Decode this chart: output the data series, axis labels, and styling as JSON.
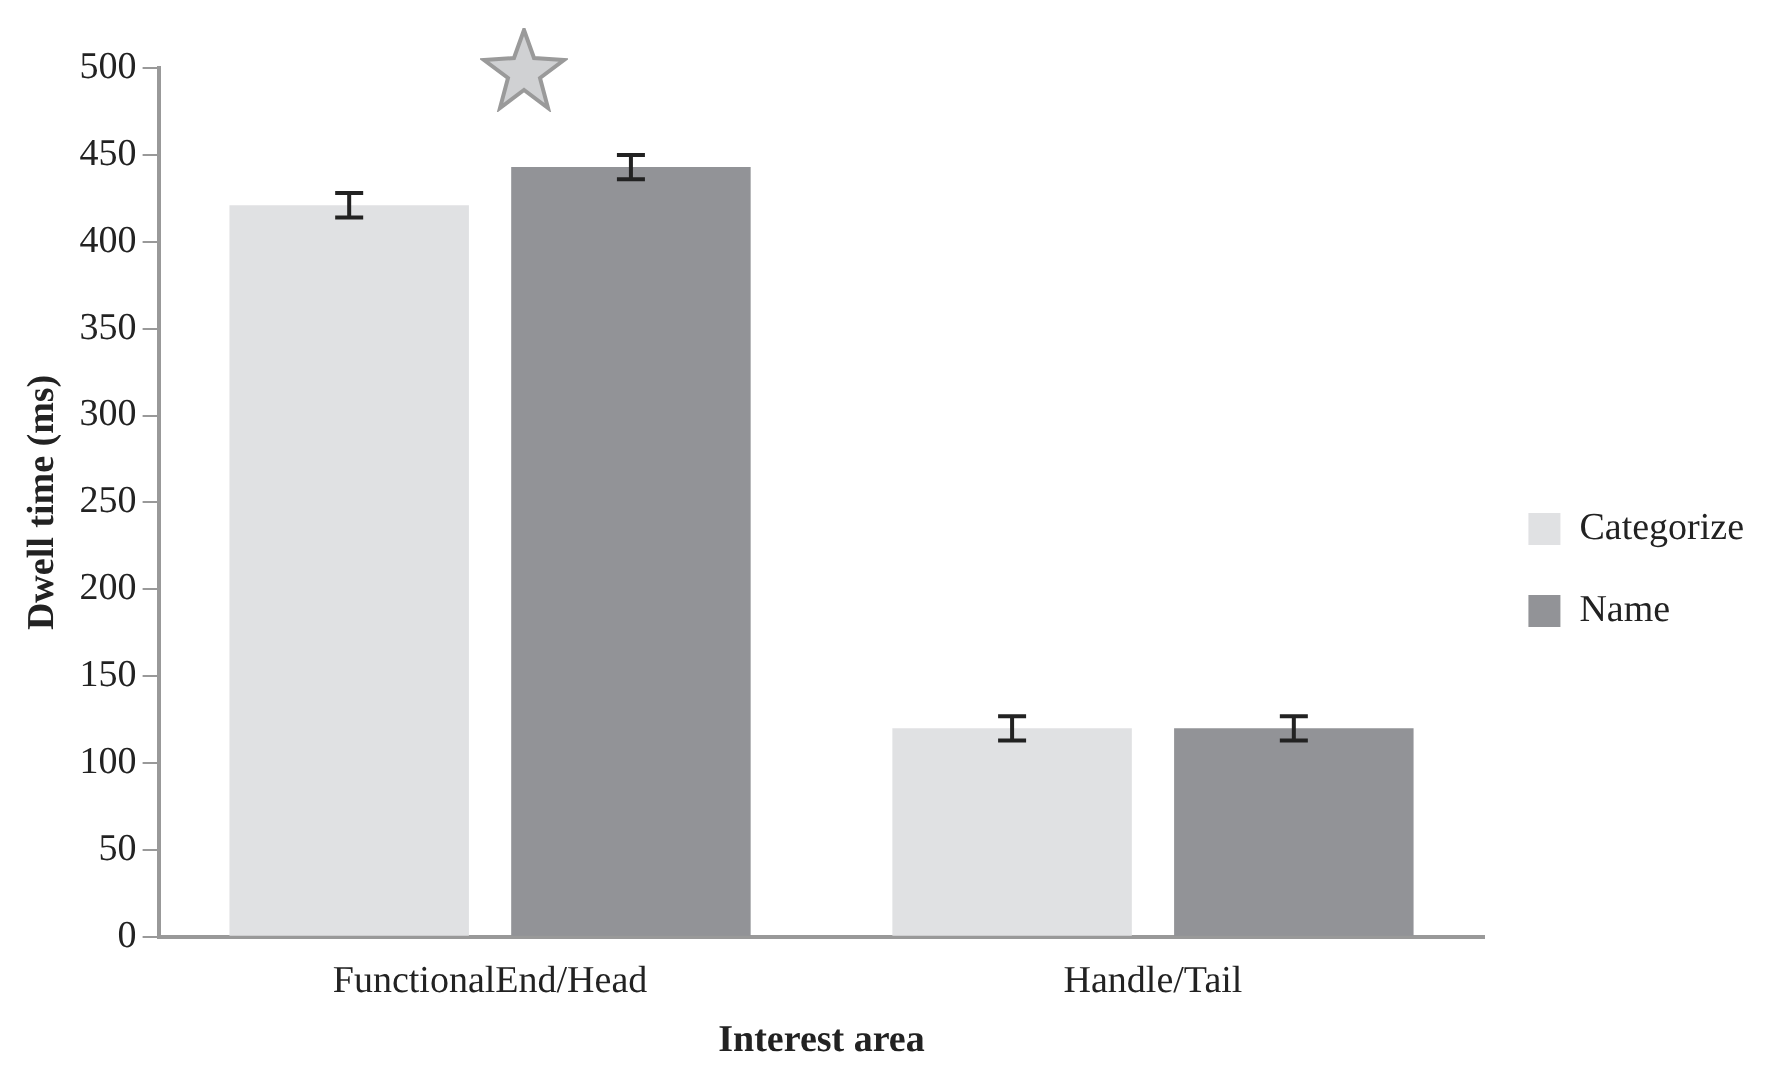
{
  "chart_data": {
    "type": "bar",
    "xlabel": "Interest area",
    "ylabel": "Dwell time (ms)",
    "categories": [
      "FunctionalEnd/Head",
      "Handle/Tail"
    ],
    "series": [
      {
        "name": "Categorize",
        "color": "#e0e1e3",
        "values": [
          421,
          120
        ],
        "errors": [
          7,
          7
        ]
      },
      {
        "name": "Name",
        "color": "#929397",
        "values": [
          443,
          120
        ],
        "errors": [
          7,
          7
        ]
      }
    ],
    "ylim": [
      0,
      500
    ],
    "yticks": [
      0,
      50,
      100,
      150,
      200,
      250,
      300,
      350,
      400,
      450,
      500
    ],
    "grid": false,
    "legend": "right"
  }
}
